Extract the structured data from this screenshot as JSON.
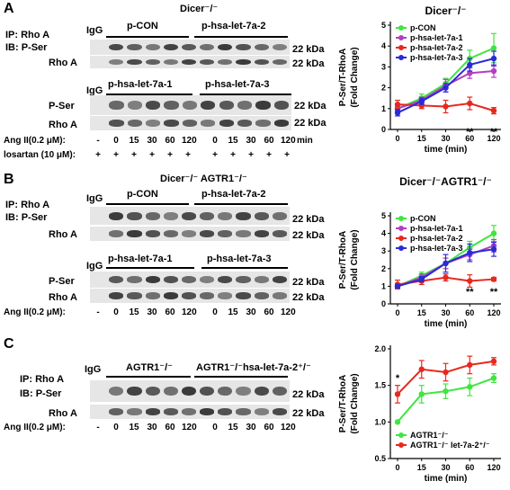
{
  "panels": [
    {
      "label": "A",
      "genotype_label": "Dicer⁻/⁻",
      "ip_label": "IP: Rho A",
      "ib_label": "IB: P-Ser",
      "rhoa_label": "Rho A",
      "pser_label": "P-Ser",
      "igg_label": "IgG",
      "blot1_groups": [
        "p-CON",
        "p-hsa-let-7a-2"
      ],
      "blot2_groups": [
        "p-hsa-let-7a-1",
        "p-hsa-let-7a-3"
      ],
      "kda": "22 kDa",
      "angii_label": "Ang II(0.2 μM):",
      "losartan_label": "losartan (10 μM):",
      "timepoints": [
        "-",
        "0",
        "15",
        "30",
        "60",
        "120",
        "0",
        "15",
        "30",
        "60",
        "120"
      ],
      "plus_signs": [
        "+",
        "+",
        "+",
        "+",
        "+",
        "+",
        "+",
        "+",
        "+",
        "+",
        "+"
      ],
      "min_label": "min"
    },
    {
      "label": "B",
      "genotype_label": "Dicer⁻/⁻ AGTR1⁻/⁻",
      "ip_label": "IP: Rho A",
      "ib_label": "IB: P-Ser",
      "rhoa_label": "Rho A",
      "pser_label": "P-Ser",
      "igg_label": "IgG",
      "blot1_groups": [
        "p-CON",
        "p-hsa-let-7a-2"
      ],
      "blot2_groups": [
        "p-hsa-let-7a-1",
        "p-hsa-let-7a-3"
      ],
      "kda": "22 kDa",
      "angii_label": "Ang II(0.2 μM):",
      "timepoints": [
        "-",
        "0",
        "15",
        "30",
        "60",
        "120",
        "0",
        "15",
        "30",
        "60",
        "120"
      ]
    },
    {
      "label": "C",
      "ip_label": "IP: Rho A",
      "ib_label": "IB: P-Ser",
      "rhoa_label": "Rho A",
      "igg_label": "IgG",
      "blot1_groups": [
        "AGTR1⁻/⁻",
        "AGTR1⁻/⁻hsa-let-7a-2⁺/⁻"
      ],
      "kda": "22 kDa",
      "angii_label": "Ang II(0.2 μM):",
      "timepoints": [
        "-",
        "0",
        "15",
        "30",
        "60",
        "120",
        "0",
        "15",
        "30",
        "60",
        "120"
      ]
    }
  ],
  "chart_data": [
    {
      "type": "line",
      "title": "Dicer⁻/⁻",
      "ylabel_lines": [
        "P-Ser/T-RhoA",
        "(Fold Change)"
      ],
      "xlabel": "time (min)",
      "categories": [
        "0",
        "15",
        "30",
        "60",
        "120"
      ],
      "ylim": [
        0,
        5
      ],
      "yticks": [
        "0",
        "1",
        "2",
        "3",
        "4",
        "5"
      ],
      "legend_position": "top-left",
      "series": [
        {
          "name": "p-CON",
          "color": "#3ee63e",
          "values": [
            1.0,
            1.5,
            2.2,
            3.4,
            3.9
          ],
          "errors": [
            0.1,
            0.2,
            0.25,
            0.4,
            0.7
          ]
        },
        {
          "name": "p-hsa-let-7a-1",
          "color": "#b040c0",
          "values": [
            1.0,
            1.4,
            2.1,
            2.7,
            2.8
          ],
          "errors": [
            0.1,
            0.15,
            0.3,
            0.25,
            0.3
          ]
        },
        {
          "name": "p-hsa-let-7a-2",
          "color": "#e8281e",
          "values": [
            1.2,
            1.15,
            1.1,
            1.25,
            0.9
          ],
          "errors": [
            0.2,
            0.15,
            0.3,
            0.3,
            0.15
          ]
        },
        {
          "name": "p-hsa-let-7a-3",
          "color": "#2a2ad8",
          "values": [
            0.8,
            1.35,
            2.0,
            3.1,
            3.4
          ],
          "errors": [
            0.15,
            0.15,
            0.2,
            0.3,
            0.35
          ]
        }
      ],
      "annotations": [
        {
          "category": "60",
          "text": "**"
        },
        {
          "category": "120",
          "text": "**"
        }
      ]
    },
    {
      "type": "line",
      "title": "Dicer⁻/⁻AGTR1⁻/⁻",
      "ylabel_lines": [
        "P-Ser/T-RhoA",
        "(Fold Change)"
      ],
      "xlabel": "time (min)",
      "categories": [
        "0",
        "15",
        "30",
        "60",
        "120"
      ],
      "ylim": [
        0,
        5
      ],
      "yticks": [
        "0",
        "1",
        "2",
        "3",
        "4",
        "5"
      ],
      "legend_position": "top-left",
      "series": [
        {
          "name": "p-CON",
          "color": "#3ee63e",
          "values": [
            1.0,
            1.6,
            2.3,
            3.2,
            4.0
          ],
          "errors": [
            0.1,
            0.2,
            0.3,
            0.35,
            0.45
          ]
        },
        {
          "name": "p-hsa-let-7a-1",
          "color": "#b040c0",
          "values": [
            1.0,
            1.5,
            2.3,
            2.8,
            3.3
          ],
          "errors": [
            0.1,
            0.2,
            0.3,
            0.3,
            0.35
          ]
        },
        {
          "name": "p-hsa-let-7a-2",
          "color": "#e8281e",
          "values": [
            1.1,
            1.3,
            1.5,
            1.3,
            1.4
          ],
          "errors": [
            0.25,
            0.2,
            0.2,
            0.35,
            0.1
          ]
        },
        {
          "name": "p-hsa-let-7a-3",
          "color": "#2a2ad8",
          "values": [
            1.0,
            1.4,
            2.3,
            2.9,
            3.1
          ],
          "errors": [
            0.1,
            0.15,
            0.5,
            0.5,
            0.4
          ]
        }
      ],
      "annotations": [
        {
          "category": "60",
          "text": "**"
        },
        {
          "category": "120",
          "text": "**"
        }
      ]
    },
    {
      "type": "line",
      "title": "",
      "ylabel_lines": [
        "P-Ser/T-RhoA",
        "(Fold Change)"
      ],
      "xlabel": "time (min)",
      "categories": [
        "0",
        "15",
        "30",
        "60",
        "120"
      ],
      "ylim": [
        0.5,
        2.0
      ],
      "yticks": [
        "0.5",
        "1.0",
        "1.5",
        "2.0"
      ],
      "legend_position": "bottom-left",
      "series": [
        {
          "name": "AGTR1⁻/⁻",
          "color": "#3ee63e",
          "values": [
            1.0,
            1.38,
            1.42,
            1.48,
            1.6
          ],
          "errors": [
            0.0,
            0.12,
            0.1,
            0.12,
            0.06
          ]
        },
        {
          "name": "AGTR1⁻/⁻ let-7a-2⁺/⁻",
          "color": "#e8281e",
          "values": [
            1.38,
            1.72,
            1.68,
            1.78,
            1.83
          ],
          "errors": [
            0.12,
            0.12,
            0.12,
            0.12,
            0.05
          ]
        }
      ],
      "annotations": [
        {
          "category": "0",
          "text": "*"
        }
      ]
    }
  ]
}
